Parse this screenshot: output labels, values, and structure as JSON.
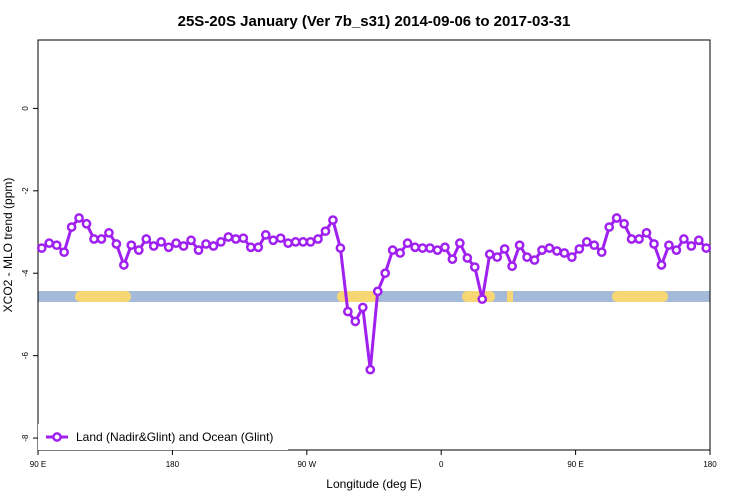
{
  "chart_data": {
    "type": "line",
    "title": "25S-20S January (Ver 7b_s31)   2014-09-06 to 2017-03-31",
    "x_label": "Longitude (deg E)",
    "y_label": "XCO2 - MLO trend (ppm)",
    "xlim": [
      90,
      540
    ],
    "xticks": [
      {
        "value": 90,
        "label": "90 E"
      },
      180,
      {
        "value": 270,
        "label": "90 W"
      },
      {
        "value": 360,
        "label": "0"
      },
      {
        "value": 450,
        "label": "90 E"
      },
      {
        "value": 540,
        "label": "180"
      }
    ],
    "ylim": [
      -8.29,
      1.66
    ],
    "yticks": [
      0,
      -2,
      -4,
      -6,
      -8
    ],
    "grid": false,
    "legend": "bottom-left",
    "x": [
      92.5,
      97.5,
      102.5,
      107.5,
      112.5,
      117.5,
      122.5,
      127.5,
      132.5,
      137.5,
      142.5,
      147.5,
      152.5,
      157.5,
      162.5,
      167.5,
      172.5,
      177.5,
      182.5,
      187.5,
      192.5,
      197.5,
      202.5,
      207.5,
      212.5,
      217.5,
      222.5,
      227.5,
      232.5,
      237.5,
      242.5,
      247.5,
      252.5,
      257.5,
      262.5,
      267.5,
      272.5,
      277.5,
      282.5,
      287.5,
      292.5,
      297.5,
      302.5,
      307.5,
      312.5,
      317.5,
      322.5,
      327.5,
      332.5,
      337.5,
      342.5,
      347.5,
      352.5,
      357.5,
      362.5,
      367.5,
      372.5,
      377.5,
      382.5,
      387.5,
      392.5,
      397.5,
      402.5,
      407.5,
      412.5,
      417.5,
      422.5,
      427.5,
      432.5,
      437.5,
      442.5,
      447.5,
      452.5,
      457.5,
      462.5,
      467.5,
      472.5,
      477.5,
      482.5,
      487.5,
      492.5,
      497.5,
      502.5,
      507.5,
      512.5,
      517.5,
      522.5,
      527.5,
      532.5,
      537.5
    ],
    "series": [
      {
        "name": "Land (Nadir&Glint) and Ocean (Glint)",
        "color": "#a020f0",
        "values": [
          -3.39,
          -3.27,
          -3.32,
          -3.49,
          -2.88,
          -2.66,
          -2.8,
          -3.17,
          -3.17,
          -3.02,
          -3.29,
          -3.8,
          -3.32,
          -3.44,
          -3.17,
          -3.34,
          -3.24,
          -3.37,
          -3.27,
          -3.34,
          -3.2,
          -3.44,
          -3.29,
          -3.34,
          -3.24,
          -3.12,
          -3.17,
          -3.15,
          -3.37,
          -3.37,
          -3.07,
          -3.2,
          -3.15,
          -3.27,
          -3.24,
          -3.24,
          -3.24,
          -3.17,
          -2.98,
          -2.71,
          -3.39,
          -4.93,
          -5.17,
          -4.83,
          -6.34,
          -4.44,
          -4.0,
          -3.44,
          -3.51,
          -3.27,
          -3.37,
          -3.39,
          -3.39,
          -3.44,
          -3.37,
          -3.66,
          -3.27,
          -3.63,
          -3.85,
          -4.63,
          -3.54,
          -3.61,
          -3.41,
          -3.83,
          -3.32,
          -3.61,
          -3.68,
          -3.44,
          -3.39,
          -3.46,
          -3.51,
          -3.61,
          -3.41,
          -3.24,
          -3.32,
          -3.49,
          -2.88,
          -2.66,
          -2.8,
          -3.17,
          -3.17,
          -3.02,
          -3.29,
          -3.8,
          -3.32,
          -3.44,
          -3.17,
          -3.34,
          -3.2,
          -3.39
        ]
      }
    ]
  }
}
